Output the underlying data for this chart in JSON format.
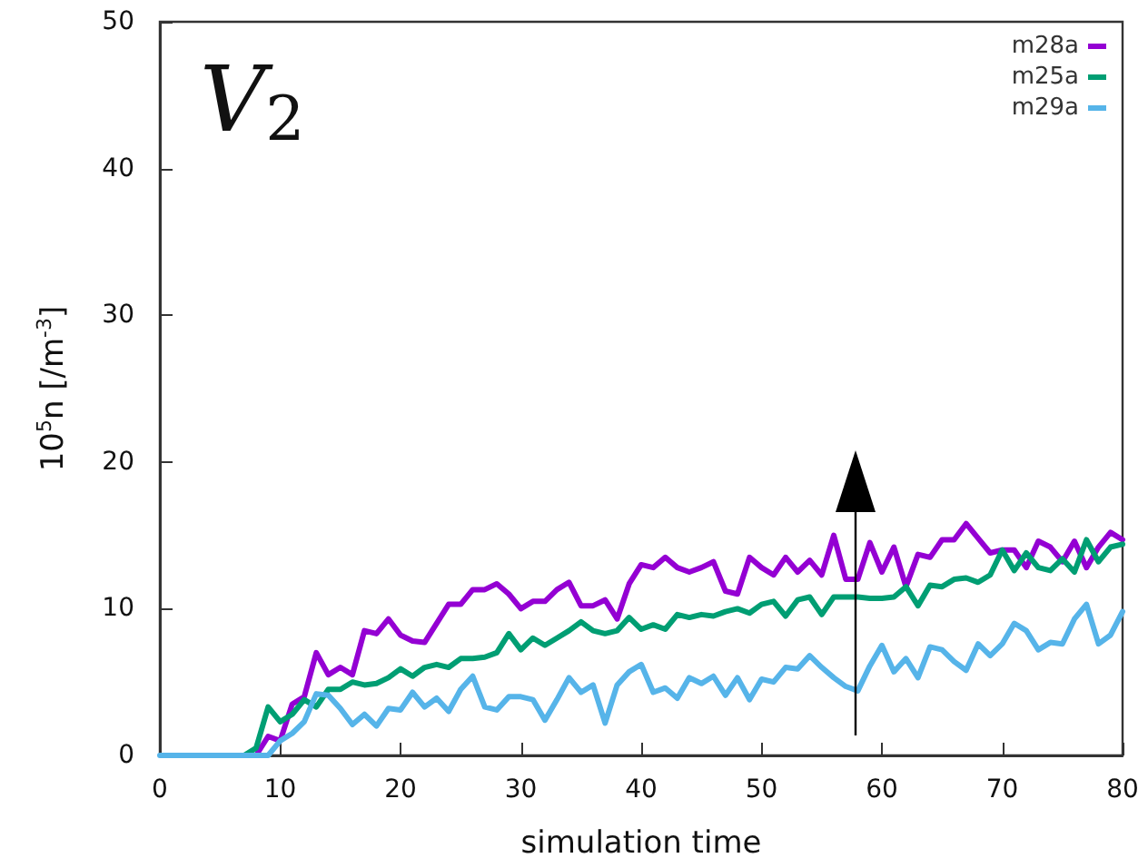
{
  "chart_data": {
    "type": "line",
    "xlabel": "simulation time",
    "ylabel": "10$^{5}$n [/m$^{-3}$]",
    "annotations": [
      "V$_{2}$"
    ],
    "x": [
      0,
      1,
      2,
      3,
      4,
      5,
      6,
      7,
      8,
      9,
      10,
      11,
      12,
      13,
      14,
      15,
      16,
      17,
      18,
      19,
      20,
      21,
      22,
      23,
      24,
      25,
      26,
      27,
      28,
      29,
      30,
      31,
      32,
      33,
      34,
      35,
      36,
      37,
      38,
      39,
      40,
      41,
      42,
      43,
      44,
      45,
      46,
      47,
      48,
      49,
      50,
      51,
      52,
      53,
      54,
      55,
      56,
      57,
      58,
      59,
      60,
      61,
      62,
      63,
      64,
      65,
      66,
      67,
      68,
      69,
      70,
      71,
      72,
      73,
      74,
      75,
      76,
      77,
      78,
      79,
      80
    ],
    "series": [
      {
        "name": "m28a",
        "color": "#9400d3",
        "values": [
          null,
          null,
          null,
          null,
          null,
          null,
          0,
          0,
          0,
          1.3,
          1,
          3.5,
          4,
          7,
          5.5,
          6,
          5.5,
          8.5,
          8.3,
          9.3,
          8.2,
          7.8,
          7.7,
          9,
          10.3,
          10.3,
          11.3,
          11.3,
          11.7,
          11,
          10,
          10.5,
          10.5,
          11.3,
          11.8,
          10.2,
          10.2,
          10.6,
          9.3,
          11.7,
          13,
          12.8,
          13.5,
          12.8,
          12.5,
          12.8,
          13.2,
          11.2,
          11,
          13.5,
          12.8,
          12.3,
          13.5,
          12.5,
          13.3,
          12.3,
          15,
          12,
          12,
          14.5,
          12.5,
          14.2,
          11.5,
          13.7,
          13.5,
          14.7,
          14.7,
          15.8,
          14.8,
          13.8,
          14,
          14,
          12.8,
          14.6,
          14.2,
          13.2,
          14.6,
          12.8,
          14.2,
          15.2,
          14.7
        ]
      },
      {
        "name": "m25a",
        "color": "#009e73",
        "values": [
          null,
          null,
          null,
          null,
          null,
          0,
          0,
          0,
          0.5,
          3.3,
          2.3,
          2.8,
          3.8,
          3.3,
          4.5,
          4.5,
          5,
          4.8,
          4.9,
          5.3,
          5.9,
          5.4,
          6,
          6.2,
          6,
          6.6,
          6.6,
          6.7,
          7,
          8.3,
          7.2,
          8,
          7.5,
          8,
          8.5,
          9.1,
          8.5,
          8.3,
          8.5,
          9.4,
          8.6,
          8.9,
          8.6,
          9.6,
          9.4,
          9.6,
          9.5,
          9.8,
          10,
          9.7,
          10.3,
          10.5,
          9.5,
          10.6,
          10.8,
          9.6,
          10.8,
          10.8,
          10.8,
          10.7,
          10.7,
          10.8,
          11.5,
          10.2,
          11.6,
          11.5,
          12,
          12.1,
          11.8,
          12.3,
          14,
          12.6,
          13.8,
          12.8,
          12.6,
          13.4,
          12.5,
          14.7,
          13.2,
          14.2,
          14.4
        ]
      },
      {
        "name": "m29a",
        "color": "#56b4e9",
        "values": [
          0,
          0,
          0,
          0,
          0,
          0,
          0,
          0,
          0,
          0,
          1,
          1.5,
          2.3,
          4.2,
          4.1,
          3.2,
          2.1,
          2.8,
          2,
          3.2,
          3.1,
          4.3,
          3.3,
          3.9,
          3,
          4.5,
          5.4,
          3.3,
          3.1,
          4,
          4,
          3.8,
          2.4,
          3.8,
          5.3,
          4.3,
          4.8,
          2.2,
          4.8,
          5.7,
          6.2,
          4.3,
          4.6,
          3.9,
          5.3,
          4.9,
          5.4,
          4.1,
          5.3,
          3.8,
          5.2,
          5,
          6,
          5.9,
          6.8,
          6,
          5.3,
          4.7,
          4.4,
          6.1,
          7.5,
          5.7,
          6.6,
          5.3,
          7.4,
          7.2,
          6.4,
          5.8,
          7.6,
          6.8,
          7.6,
          9,
          8.5,
          7.2,
          7.7,
          7.6,
          9.3,
          10.3,
          7.6,
          8.2,
          9.8
        ]
      }
    ],
    "xlim": [
      0,
      80
    ],
    "xticks": [
      0,
      10,
      20,
      30,
      40,
      50,
      60,
      70,
      80
    ],
    "ylim": [
      0,
      50
    ],
    "yticks": [
      0,
      10,
      20,
      30,
      40,
      50
    ],
    "grid": false,
    "legend": "top right",
    "marker": "none",
    "line_style": "solid"
  }
}
